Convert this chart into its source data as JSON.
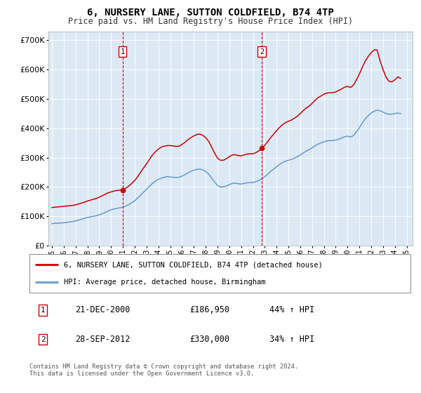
{
  "title": "6, NURSERY LANE, SUTTON COLDFIELD, B74 4TP",
  "subtitle": "Price paid vs. HM Land Registry's House Price Index (HPI)",
  "ytick_values": [
    0,
    100000,
    200000,
    300000,
    400000,
    500000,
    600000,
    700000
  ],
  "ylim": [
    0,
    730000
  ],
  "xlim_start": 1994.7,
  "xlim_end": 2025.5,
  "bg_color": "#dce9f5",
  "marker1_x": 2000.97,
  "marker2_x": 2012.74,
  "marker1_label": "1",
  "marker2_label": "2",
  "marker1_date": "21-DEC-2000",
  "marker1_price": "£186,950",
  "marker1_hpi": "44% ↑ HPI",
  "marker2_date": "28-SEP-2012",
  "marker2_price": "£330,000",
  "marker2_hpi": "34% ↑ HPI",
  "legend_line1": "6, NURSERY LANE, SUTTON COLDFIELD, B74 4TP (detached house)",
  "legend_line2": "HPI: Average price, detached house, Birmingham",
  "footer": "Contains HM Land Registry data © Crown copyright and database right 2024.\nThis data is licensed under the Open Government Licence v3.0.",
  "red_line_color": "#cc0000",
  "blue_line_color": "#6699cc",
  "hpi_data_x": [
    1995.0,
    1995.25,
    1995.5,
    1995.75,
    1996.0,
    1996.25,
    1996.5,
    1996.75,
    1997.0,
    1997.25,
    1997.5,
    1997.75,
    1998.0,
    1998.25,
    1998.5,
    1998.75,
    1999.0,
    1999.25,
    1999.5,
    1999.75,
    2000.0,
    2000.25,
    2000.5,
    2000.75,
    2001.0,
    2001.25,
    2001.5,
    2001.75,
    2002.0,
    2002.25,
    2002.5,
    2002.75,
    2003.0,
    2003.25,
    2003.5,
    2003.75,
    2004.0,
    2004.25,
    2004.5,
    2004.75,
    2005.0,
    2005.25,
    2005.5,
    2005.75,
    2006.0,
    2006.25,
    2006.5,
    2006.75,
    2007.0,
    2007.25,
    2007.5,
    2007.75,
    2008.0,
    2008.25,
    2008.5,
    2008.75,
    2009.0,
    2009.25,
    2009.5,
    2009.75,
    2010.0,
    2010.25,
    2010.5,
    2010.75,
    2011.0,
    2011.25,
    2011.5,
    2011.75,
    2012.0,
    2012.25,
    2012.5,
    2012.75,
    2013.0,
    2013.25,
    2013.5,
    2013.75,
    2014.0,
    2014.25,
    2014.5,
    2014.75,
    2015.0,
    2015.25,
    2015.5,
    2015.75,
    2016.0,
    2016.25,
    2016.5,
    2016.75,
    2017.0,
    2017.25,
    2017.5,
    2017.75,
    2018.0,
    2018.25,
    2018.5,
    2018.75,
    2019.0,
    2019.25,
    2019.5,
    2019.75,
    2020.0,
    2020.25,
    2020.5,
    2020.75,
    2021.0,
    2021.25,
    2021.5,
    2021.75,
    2022.0,
    2022.25,
    2022.5,
    2022.75,
    2023.0,
    2023.25,
    2023.5,
    2023.75,
    2024.0,
    2024.25,
    2024.5
  ],
  "hpi_data_y": [
    75000,
    76000,
    76500,
    77000,
    78000,
    79000,
    80500,
    82000,
    84000,
    87000,
    90000,
    93000,
    96000,
    98000,
    100000,
    102000,
    105000,
    109000,
    113000,
    118000,
    122000,
    125000,
    127000,
    129000,
    131000,
    135000,
    140000,
    146000,
    153000,
    162000,
    172000,
    182000,
    192000,
    202000,
    212000,
    220000,
    226000,
    230000,
    233000,
    235000,
    234000,
    233000,
    232000,
    233000,
    237000,
    242000,
    248000,
    253000,
    257000,
    260000,
    261000,
    258000,
    253000,
    244000,
    231000,
    217000,
    205000,
    200000,
    200000,
    203000,
    208000,
    212000,
    213000,
    211000,
    210000,
    212000,
    214000,
    215000,
    215000,
    218000,
    222000,
    228000,
    235000,
    244000,
    253000,
    261000,
    269000,
    277000,
    283000,
    288000,
    291000,
    294000,
    298000,
    303000,
    309000,
    316000,
    322000,
    327000,
    333000,
    340000,
    346000,
    350000,
    354000,
    357000,
    358000,
    358000,
    360000,
    363000,
    367000,
    371000,
    373000,
    370000,
    375000,
    388000,
    402000,
    418000,
    432000,
    443000,
    452000,
    458000,
    462000,
    460000,
    455000,
    450000,
    448000,
    448000,
    450000,
    452000,
    450000
  ],
  "red_data_x": [
    1995.0,
    1995.25,
    1995.5,
    1995.75,
    1996.0,
    1996.25,
    1996.5,
    1996.75,
    1997.0,
    1997.25,
    1997.5,
    1997.75,
    1998.0,
    1998.25,
    1998.5,
    1998.75,
    1999.0,
    1999.25,
    1999.5,
    1999.75,
    2000.0,
    2000.25,
    2000.5,
    2000.75,
    2001.0,
    2001.25,
    2001.5,
    2001.75,
    2002.0,
    2002.25,
    2002.5,
    2002.75,
    2003.0,
    2003.25,
    2003.5,
    2003.75,
    2004.0,
    2004.25,
    2004.5,
    2004.75,
    2005.0,
    2005.25,
    2005.5,
    2005.75,
    2006.0,
    2006.25,
    2006.5,
    2006.75,
    2007.0,
    2007.25,
    2007.5,
    2007.75,
    2008.0,
    2008.25,
    2008.5,
    2008.75,
    2009.0,
    2009.25,
    2009.5,
    2009.75,
    2010.0,
    2010.25,
    2010.5,
    2010.75,
    2011.0,
    2011.25,
    2011.5,
    2011.75,
    2012.0,
    2012.25,
    2012.5,
    2012.75,
    2013.0,
    2013.25,
    2013.5,
    2013.75,
    2014.0,
    2014.25,
    2014.5,
    2014.75,
    2015.0,
    2015.25,
    2015.5,
    2015.75,
    2016.0,
    2016.25,
    2016.5,
    2016.75,
    2017.0,
    2017.25,
    2017.5,
    2017.75,
    2018.0,
    2018.25,
    2018.5,
    2018.75,
    2019.0,
    2019.25,
    2019.5,
    2019.75,
    2020.0,
    2020.25,
    2020.5,
    2020.75,
    2021.0,
    2021.25,
    2021.5,
    2021.75,
    2022.0,
    2022.25,
    2022.5,
    2022.75,
    2023.0,
    2023.25,
    2023.5,
    2023.75,
    2024.0,
    2024.25,
    2024.5
  ],
  "red_data_y": [
    130000,
    131000,
    132000,
    133000,
    134000,
    135000,
    136000,
    137000,
    139000,
    142000,
    145000,
    148000,
    152000,
    155000,
    158000,
    161000,
    165000,
    170000,
    175000,
    180000,
    183000,
    186000,
    188000,
    189000,
    190000,
    196000,
    203000,
    212000,
    222000,
    235000,
    250000,
    265000,
    279000,
    294000,
    309000,
    320000,
    329000,
    336000,
    339000,
    341000,
    341000,
    340000,
    338000,
    339000,
    345000,
    352000,
    361000,
    368000,
    374000,
    379000,
    380000,
    376000,
    368000,
    356000,
    336000,
    316000,
    298000,
    291000,
    291000,
    296000,
    303000,
    309000,
    310000,
    307000,
    306000,
    309000,
    312000,
    313000,
    313000,
    317000,
    323000,
    332000,
    342000,
    355000,
    368000,
    380000,
    392000,
    403000,
    412000,
    419000,
    424000,
    428000,
    434000,
    441000,
    450000,
    460000,
    469000,
    475000,
    485000,
    495000,
    504000,
    510000,
    516000,
    520000,
    521000,
    521000,
    524000,
    529000,
    534000,
    540000,
    543000,
    539000,
    547000,
    565000,
    585000,
    608000,
    629000,
    645000,
    658000,
    667000,
    667000,
    630000,
    600000,
    575000,
    560000,
    558000,
    565000,
    575000,
    570000
  ],
  "xtick_years": [
    1995,
    1996,
    1997,
    1998,
    1999,
    2000,
    2001,
    2002,
    2003,
    2004,
    2005,
    2006,
    2007,
    2008,
    2009,
    2010,
    2011,
    2012,
    2013,
    2014,
    2015,
    2016,
    2017,
    2018,
    2019,
    2020,
    2021,
    2022,
    2023,
    2024,
    2025
  ]
}
